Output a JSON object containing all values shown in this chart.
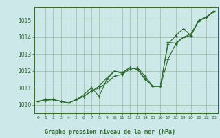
{
  "line1": {
    "x": [
      0,
      1,
      2,
      3,
      4,
      5,
      6,
      7,
      8,
      9,
      10,
      11,
      12,
      13,
      14,
      15,
      16,
      17,
      18,
      19,
      20,
      21,
      22,
      23
    ],
    "y": [
      1010.2,
      1010.3,
      1010.3,
      1010.2,
      1010.1,
      1010.3,
      1010.5,
      1010.8,
      1011.0,
      1011.3,
      1011.7,
      1011.8,
      1012.1,
      1012.2,
      1011.7,
      1011.1,
      1011.1,
      1012.7,
      1013.6,
      1014.0,
      1014.2,
      1015.0,
      1015.2,
      1015.5
    ]
  },
  "line2": {
    "x": [
      0,
      1,
      2,
      3,
      4,
      5,
      6,
      7,
      8,
      9,
      10,
      11,
      12,
      13,
      14,
      15,
      16,
      17,
      18,
      19,
      20,
      21,
      22,
      23
    ],
    "y": [
      1010.2,
      1010.3,
      1010.3,
      1010.2,
      1010.1,
      1010.3,
      1010.5,
      1010.8,
      1011.1,
      1011.6,
      1012.0,
      1011.9,
      1012.2,
      1012.1,
      1011.5,
      1011.1,
      1011.1,
      1013.6,
      1014.1,
      1014.5,
      1014.1,
      1015.0,
      1015.2,
      1015.5
    ]
  },
  "line3": {
    "x": [
      0,
      1,
      2,
      3,
      4,
      5,
      6,
      7,
      8,
      9,
      10,
      11,
      12,
      13,
      14,
      15,
      16,
      17,
      18,
      19,
      20,
      21,
      22,
      23
    ],
    "y": [
      1010.2,
      1010.25,
      1010.3,
      1010.2,
      1010.1,
      1010.3,
      1010.6,
      1011.0,
      1010.5,
      1011.5,
      1012.0,
      1011.85,
      1012.2,
      1012.1,
      1011.55,
      1011.1,
      1011.1,
      1013.7,
      1013.65,
      1014.0,
      1014.1,
      1014.95,
      1015.2,
      1015.55
    ]
  },
  "color": "#2d6a2d",
  "bg_color": "#cce8e8",
  "grid_color": "#99bb99",
  "ylim": [
    1009.5,
    1015.8
  ],
  "yticks": [
    1010,
    1011,
    1012,
    1013,
    1014,
    1015
  ],
  "xlim": [
    -0.5,
    23.5
  ],
  "xticks": [
    0,
    1,
    2,
    3,
    4,
    5,
    6,
    7,
    8,
    9,
    10,
    11,
    12,
    13,
    14,
    15,
    16,
    17,
    18,
    19,
    20,
    21,
    22,
    23
  ],
  "xlabel": "Graphe pression niveau de la mer (hPa)",
  "marker": "+",
  "markersize": 3,
  "linewidth": 0.8
}
